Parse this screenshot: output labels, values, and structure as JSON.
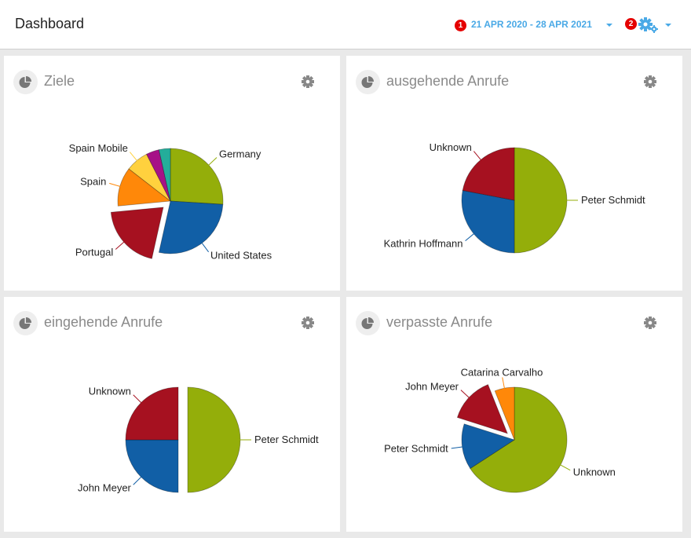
{
  "header": {
    "title": "Dashboard",
    "date_badge": "1",
    "date_range": "21 APR 2020 - 28 APR 2021",
    "settings_badge": "2",
    "accent_color": "#4aa9e6",
    "badge_color": "#e50000"
  },
  "cards": [
    {
      "title": "Ziele",
      "chart_data": {
        "type": "pie",
        "slices": [
          {
            "name": "Germany",
            "value": 26,
            "color": "#94ae0a",
            "exploded": false
          },
          {
            "name": "United States",
            "value": 27.5,
            "color": "#115fa6",
            "exploded": false
          },
          {
            "name": "Portugal",
            "value": 20,
            "color": "#a61120",
            "exploded": true
          },
          {
            "name": "Spain",
            "value": 12,
            "color": "#ff8809",
            "exploded": false
          },
          {
            "name": "Spain Mobile",
            "value": 7,
            "color": "#ffd13e",
            "exploded": false
          },
          {
            "name": "",
            "value": 4,
            "color": "#a61187",
            "exploded": false
          },
          {
            "name": "",
            "value": 3.5,
            "color": "#24ad9a",
            "exploded": false
          }
        ]
      }
    },
    {
      "title": "ausgehende Anrufe",
      "chart_data": {
        "type": "pie",
        "slices": [
          {
            "name": "Peter Schmidt",
            "value": 50,
            "color": "#94ae0a",
            "exploded": false
          },
          {
            "name": "Kathrin Hoffmann",
            "value": 28,
            "color": "#115fa6",
            "exploded": false
          },
          {
            "name": "Unknown",
            "value": 22,
            "color": "#a61120",
            "exploded": false
          }
        ]
      }
    },
    {
      "title": "eingehende Anrufe",
      "chart_data": {
        "type": "pie",
        "slices": [
          {
            "name": "Peter Schmidt",
            "value": 50,
            "color": "#94ae0a",
            "exploded": true
          },
          {
            "name": "John Meyer",
            "value": 25,
            "color": "#115fa6",
            "exploded": false
          },
          {
            "name": "Unknown",
            "value": 25,
            "color": "#a61120",
            "exploded": false
          }
        ]
      }
    },
    {
      "title": "verpasste Anrufe",
      "chart_data": {
        "type": "pie",
        "slices": [
          {
            "name": "Unknown",
            "value": 65.5,
            "color": "#94ae0a",
            "exploded": false
          },
          {
            "name": "Peter Schmidt",
            "value": 14,
            "color": "#115fa6",
            "exploded": false
          },
          {
            "name": "John Meyer",
            "value": 14,
            "color": "#a61120",
            "exploded": true
          },
          {
            "name": "Catarina Carvalho",
            "value": 6,
            "color": "#ff8809",
            "exploded": false
          }
        ]
      }
    }
  ]
}
